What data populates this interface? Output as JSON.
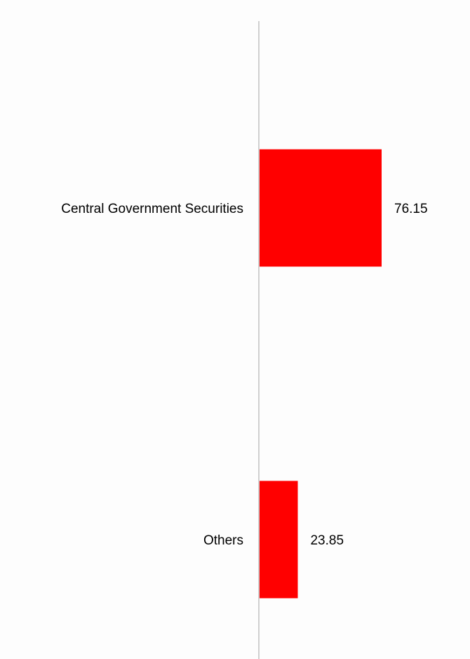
{
  "chart_data": {
    "type": "bar",
    "orientation": "horizontal",
    "categories": [
      "Central Government Securities",
      "Others"
    ],
    "values": [
      76.15,
      23.85
    ],
    "value_labels": [
      "76.15",
      "23.85"
    ],
    "bar_color": "#ff0000",
    "axis_color": "#d0d0d0",
    "grid": false,
    "legend": "none"
  }
}
